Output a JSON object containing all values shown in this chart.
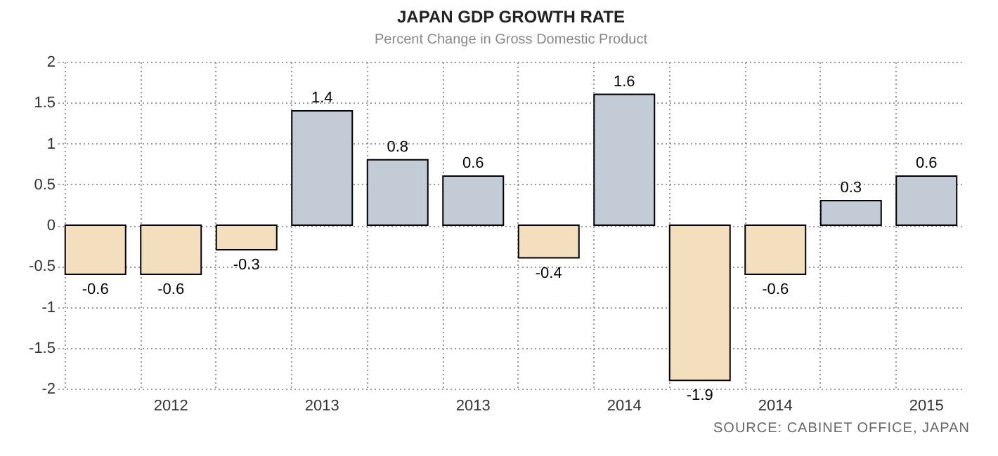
{
  "chart_data": {
    "type": "bar",
    "title": "JAPAN GDP GROWTH RATE",
    "subtitle": "Percent Change in Gross Domestic Product",
    "categories": [
      null,
      "2012",
      null,
      "2013",
      null,
      "2013",
      null,
      "2014",
      null,
      "2014",
      null,
      "2015"
    ],
    "values": [
      -0.6,
      -0.6,
      -0.3,
      1.4,
      0.8,
      0.6,
      -0.4,
      1.6,
      -1.9,
      -0.6,
      0.3,
      0.6
    ],
    "colors": [
      "#f3dfbd",
      "#f3dfbd",
      "#f3dfbd",
      "#c3ccd6",
      "#c3ccd6",
      "#c3ccd6",
      "#f3dfbd",
      "#c3ccd6",
      "#f3dfbd",
      "#f3dfbd",
      "#c3ccd6",
      "#c3ccd6"
    ],
    "ylim": [
      -2,
      2
    ],
    "yticks": [
      -2,
      -1.5,
      -1,
      -0.5,
      0,
      0.5,
      1,
      1.5,
      2
    ],
    "grid": true,
    "data_labels": true,
    "annotations": [
      "SOURCE: CABINET OFFICE, JAPAN"
    ]
  }
}
